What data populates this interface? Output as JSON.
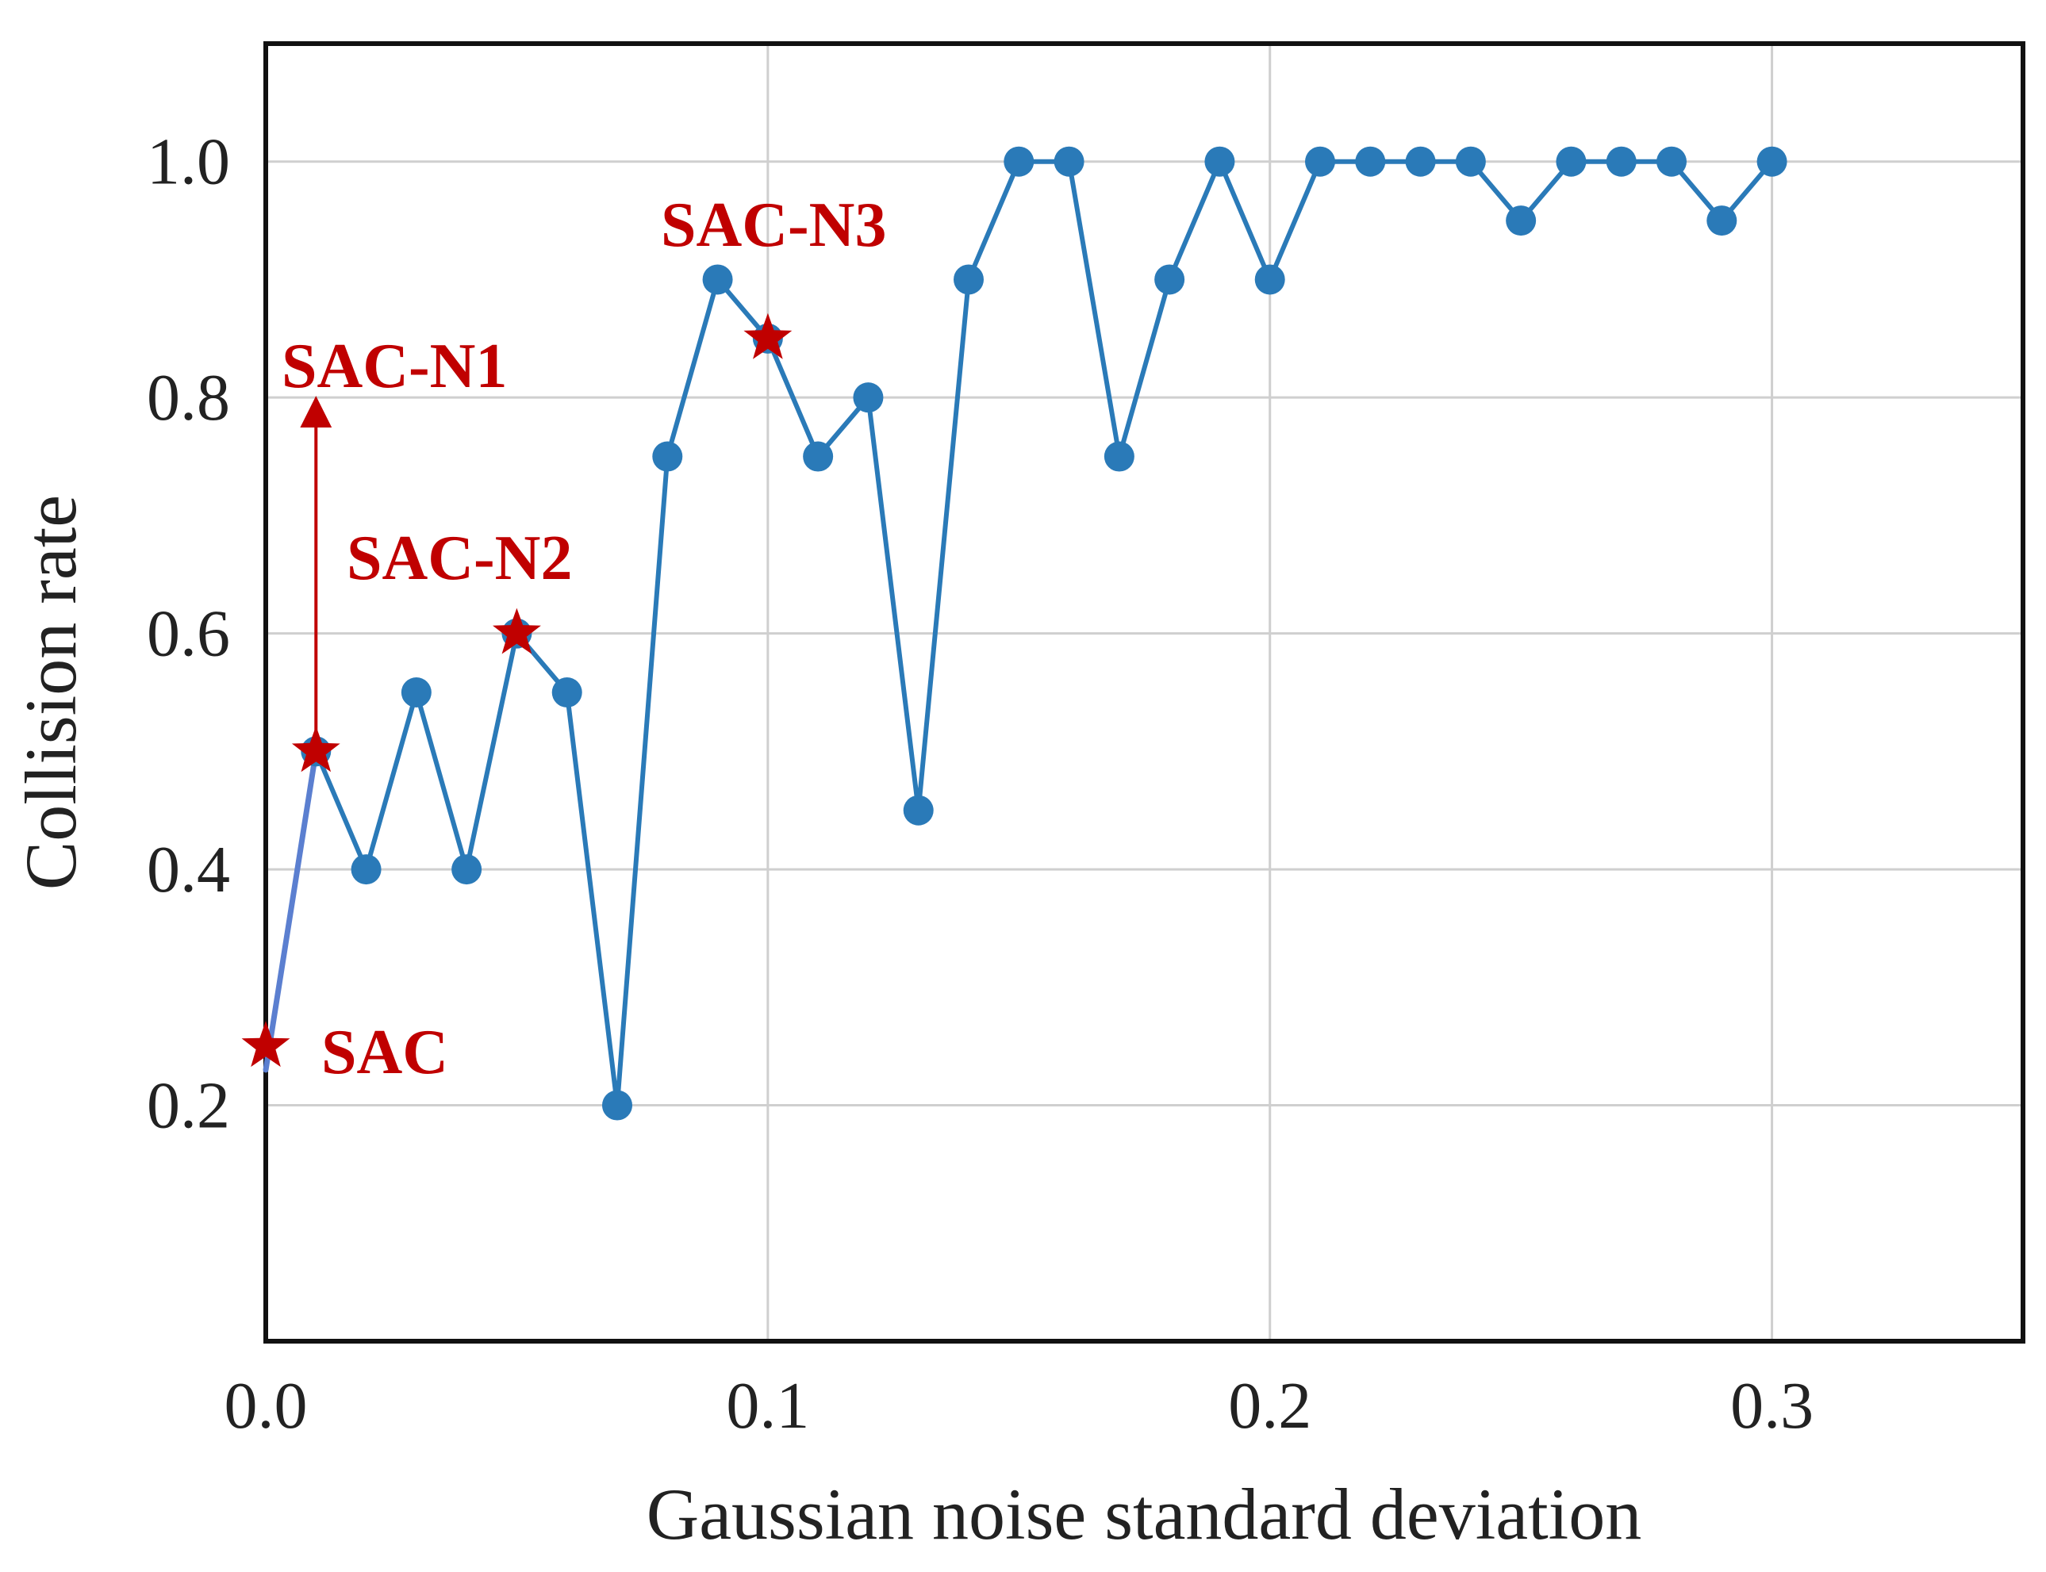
{
  "chart_data": {
    "type": "line",
    "title": "",
    "xlabel": "Gaussian noise standard deviation",
    "ylabel": "Collision rate",
    "xlim": [
      0.0,
      0.35
    ],
    "ylim": [
      0.0,
      1.1
    ],
    "grid": true,
    "xticks": [
      0.0,
      0.1,
      0.2,
      0.3
    ],
    "xtick_labels": [
      "0.0",
      "0.1",
      "0.2",
      "0.3"
    ],
    "yticks": [
      0.2,
      0.4,
      0.6,
      0.8,
      1.0
    ],
    "ytick_labels": [
      "0.2",
      "0.4",
      "0.6",
      "0.8",
      "1.0"
    ],
    "series": [
      {
        "name": "Collision rate",
        "color": "#2a7ab8",
        "x": [
          0.01,
          0.02,
          0.03,
          0.04,
          0.05,
          0.06,
          0.07,
          0.08,
          0.09,
          0.1,
          0.11,
          0.12,
          0.13,
          0.14,
          0.15,
          0.16,
          0.17,
          0.18,
          0.19,
          0.2,
          0.21,
          0.22,
          0.23,
          0.24,
          0.25,
          0.26,
          0.27,
          0.28,
          0.29,
          0.3
        ],
        "y": [
          0.5,
          0.4,
          0.55,
          0.4,
          0.6,
          0.55,
          0.2,
          0.75,
          0.9,
          0.85,
          0.75,
          0.8,
          0.45,
          0.9,
          1.0,
          1.0,
          0.75,
          0.9,
          1.0,
          0.9,
          1.0,
          1.0,
          1.0,
          1.0,
          0.95,
          1.0,
          1.0,
          1.0,
          0.95,
          1.0
        ]
      }
    ],
    "baseline_segment": {
      "x": [
        0.0,
        0.01
      ],
      "y": [
        0.23,
        0.5
      ],
      "color": "#5b7fd0"
    },
    "annotations": [
      {
        "text": "SAC",
        "x": 0.0,
        "y": 0.25,
        "color": "#c00000",
        "marker": "star"
      },
      {
        "text": "SAC-N1",
        "x": 0.01,
        "y": 0.5,
        "color": "#c00000",
        "marker": "star",
        "arrow_to_y": 0.8
      },
      {
        "text": "SAC-N2",
        "x": 0.05,
        "y": 0.6,
        "color": "#c00000",
        "marker": "star"
      },
      {
        "text": "SAC-N3",
        "x": 0.1,
        "y": 0.85,
        "color": "#c00000",
        "marker": "star"
      }
    ]
  }
}
